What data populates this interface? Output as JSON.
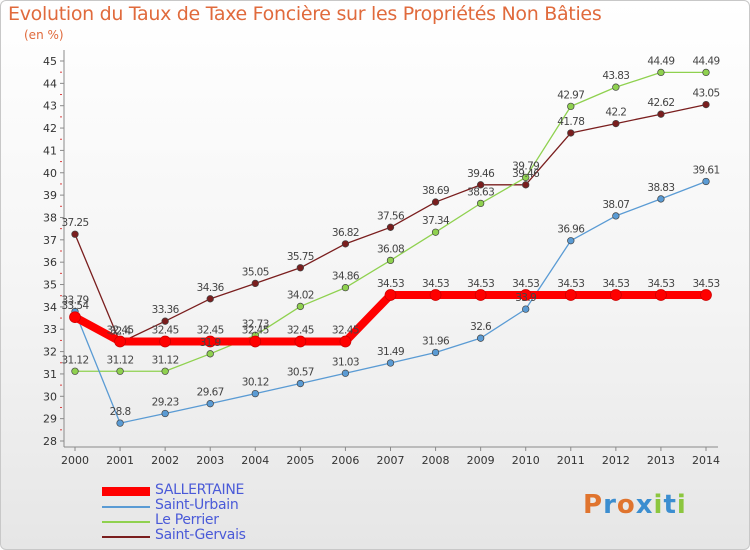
{
  "title": "Evolution du Taux de Taxe Foncière sur les Propriétés Non Bâties",
  "unit": "(en %)",
  "logo": {
    "text": "Proxiti",
    "letters": [
      {
        "ch": "P",
        "color": "#e0742e"
      },
      {
        "ch": "r",
        "color": "#3c8ed0"
      },
      {
        "ch": "o",
        "color": "#e0742e"
      },
      {
        "ch": "x",
        "color": "#3c8ed0"
      },
      {
        "ch": "i",
        "color": "#8cc63f"
      },
      {
        "ch": "t",
        "color": "#3c8ed0"
      },
      {
        "ch": "i",
        "color": "#8cc63f"
      }
    ]
  },
  "chart_data": {
    "type": "line",
    "title": "Evolution du Taux de Taxe Foncière sur les Propriétés Non Bâties",
    "ylabel": "(en %)",
    "x": [
      "2000",
      "2001",
      "2002",
      "2003",
      "2004",
      "2005",
      "2006",
      "2007",
      "2008",
      "2009",
      "2010",
      "2011",
      "2012",
      "2013",
      "2014"
    ],
    "ylim": [
      28,
      45
    ],
    "yticks": [
      28,
      29,
      30,
      31,
      32,
      33,
      34,
      35,
      36,
      37,
      38,
      39,
      40,
      41,
      42,
      43,
      44,
      45
    ],
    "grid": false,
    "legend_position": "bottom-left",
    "series": [
      {
        "name": "SALLERTAINE",
        "color": "#ff0000",
        "values": [
          33.54,
          32.45,
          32.45,
          32.45,
          32.45,
          32.45,
          32.45,
          34.53,
          34.53,
          34.53,
          34.53,
          34.53,
          34.53,
          34.53,
          34.53
        ],
        "labels": [
          "33.54",
          "32.45",
          "32.45",
          "32.45",
          "32.45",
          "32.45",
          "32.45",
          "34.53",
          "34.53",
          "34.53",
          "34.53",
          "34.53",
          "34.53",
          "34.53",
          "34.53"
        ]
      },
      {
        "name": "Saint-Urbain",
        "color": "#5a9bd4",
        "values": [
          33.79,
          28.8,
          29.23,
          29.67,
          30.12,
          30.57,
          31.03,
          31.49,
          31.96,
          32.6,
          33.9,
          36.96,
          38.07,
          38.83,
          39.61
        ],
        "labels": [
          "33.79",
          "28.8",
          "29.23",
          "29.67",
          "30.12",
          "30.57",
          "31.03",
          "31.49",
          "31.96",
          "32.6",
          "33.9",
          "36.96",
          "38.07",
          "38.83",
          "39.61"
        ]
      },
      {
        "name": "Le Perrier",
        "color": "#8fd14f",
        "values": [
          31.12,
          31.12,
          31.12,
          31.9,
          32.73,
          34.02,
          34.86,
          36.08,
          37.34,
          38.63,
          39.79,
          42.97,
          43.83,
          44.49,
          44.49
        ],
        "labels": [
          "31.12",
          "31.12",
          "31.12",
          "31.9",
          "32.73",
          "34.02",
          "34.86",
          "36.08",
          "37.34",
          "38.63",
          "39.79",
          "42.97",
          "43.83",
          "44.49",
          "44.49"
        ]
      },
      {
        "name": "Saint-Gervais",
        "color": "#7a1e1e",
        "values": [
          37.25,
          32.4,
          33.36,
          34.36,
          35.05,
          35.75,
          36.82,
          37.56,
          38.69,
          39.46,
          39.46,
          41.78,
          42.2,
          42.62,
          43.05
        ],
        "labels": [
          "37.25",
          "32.4",
          "33.36",
          "34.36",
          "35.05",
          "35.75",
          "36.82",
          "37.56",
          "38.69",
          "39.46",
          "39.46",
          "41.78",
          "42.2",
          "42.62",
          "43.05"
        ]
      }
    ]
  }
}
